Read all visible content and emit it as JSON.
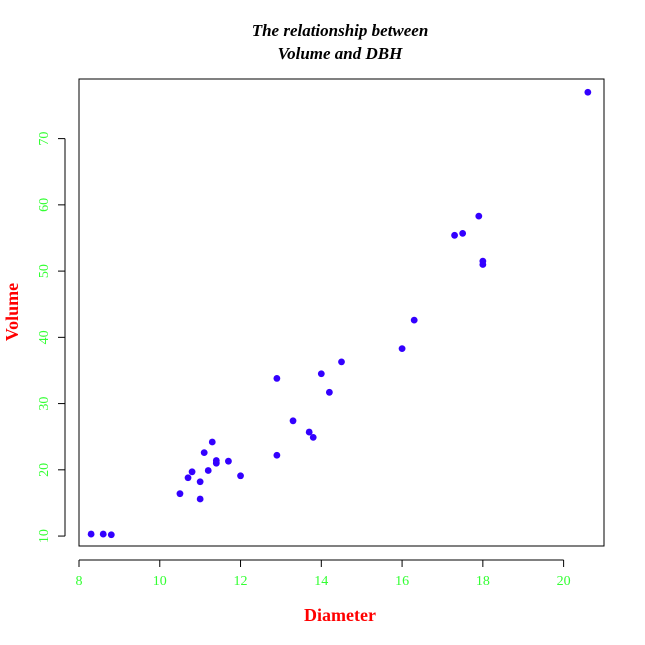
{
  "chart_data": {
    "type": "scatter",
    "title": [
      "The relationship between",
      "Volume and DBH"
    ],
    "xlabel": "Diameter",
    "ylabel": "Volume",
    "xlim": [
      8,
      21
    ],
    "ylim": [
      8.5,
      79
    ],
    "xticks": [
      8,
      10,
      12,
      14,
      16,
      18,
      20
    ],
    "yticks": [
      10,
      20,
      30,
      40,
      50,
      60,
      70
    ],
    "grid": false,
    "legend": "none",
    "colors": {
      "points": "#3300ff",
      "axis_labels": "#ff0000",
      "tick_labels": "#33ff33",
      "title": "#000000",
      "frame": "#000000"
    },
    "points": [
      {
        "x": 8.3,
        "y": 10.3
      },
      {
        "x": 8.6,
        "y": 10.3
      },
      {
        "x": 8.8,
        "y": 10.2
      },
      {
        "x": 10.5,
        "y": 16.4
      },
      {
        "x": 10.7,
        "y": 18.8
      },
      {
        "x": 10.8,
        "y": 19.7
      },
      {
        "x": 11.0,
        "y": 15.6
      },
      {
        "x": 11.0,
        "y": 18.2
      },
      {
        "x": 11.1,
        "y": 22.6
      },
      {
        "x": 11.2,
        "y": 19.9
      },
      {
        "x": 11.3,
        "y": 24.2
      },
      {
        "x": 11.4,
        "y": 21.0
      },
      {
        "x": 11.4,
        "y": 21.4
      },
      {
        "x": 11.7,
        "y": 21.3
      },
      {
        "x": 12.0,
        "y": 19.1
      },
      {
        "x": 12.9,
        "y": 22.2
      },
      {
        "x": 12.9,
        "y": 33.8
      },
      {
        "x": 13.3,
        "y": 27.4
      },
      {
        "x": 13.7,
        "y": 25.7
      },
      {
        "x": 13.8,
        "y": 24.9
      },
      {
        "x": 14.0,
        "y": 34.5
      },
      {
        "x": 14.2,
        "y": 31.7
      },
      {
        "x": 14.5,
        "y": 36.3
      },
      {
        "x": 16.0,
        "y": 38.3
      },
      {
        "x": 16.3,
        "y": 42.6
      },
      {
        "x": 17.3,
        "y": 55.4
      },
      {
        "x": 17.5,
        "y": 55.7
      },
      {
        "x": 17.9,
        "y": 58.3
      },
      {
        "x": 18.0,
        "y": 51.5
      },
      {
        "x": 18.0,
        "y": 51.0
      },
      {
        "x": 20.6,
        "y": 77.0
      }
    ]
  }
}
